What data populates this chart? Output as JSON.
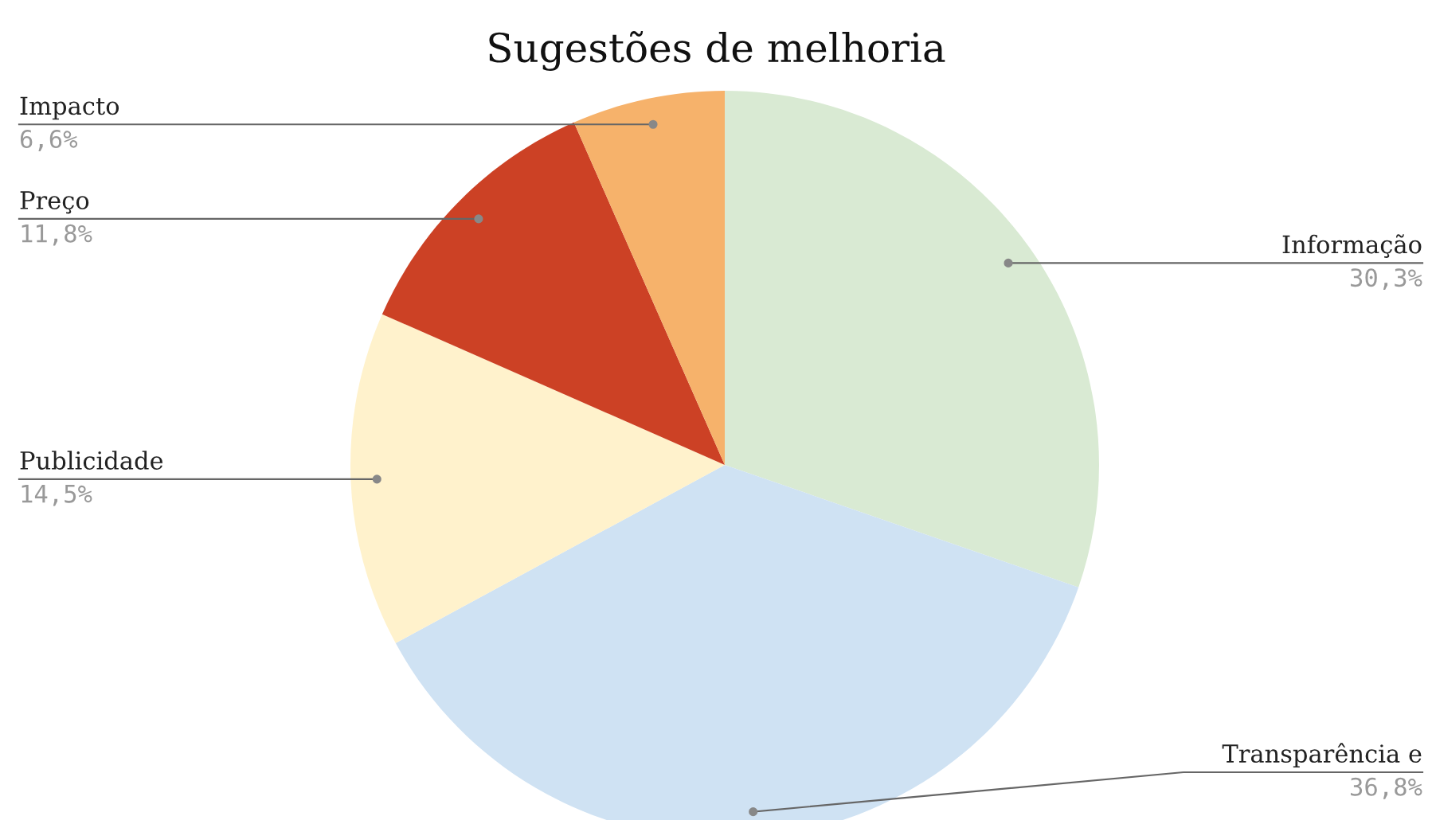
{
  "chart_data": {
    "type": "pie",
    "title": "Sugestões de melhoria",
    "categories": [
      "Informação",
      "Transparência e",
      "Publicidade",
      "Preço",
      "Impacto"
    ],
    "values": [
      30.3,
      36.8,
      14.5,
      11.8,
      6.6
    ],
    "colors": [
      "#d9ead3",
      "#cfe2f3",
      "#fff2cc",
      "#cc4125",
      "#f6b26b"
    ],
    "value_labels": [
      "30,3%",
      "36,8%",
      "14,5%",
      "11,8%",
      "6,6%"
    ]
  }
}
